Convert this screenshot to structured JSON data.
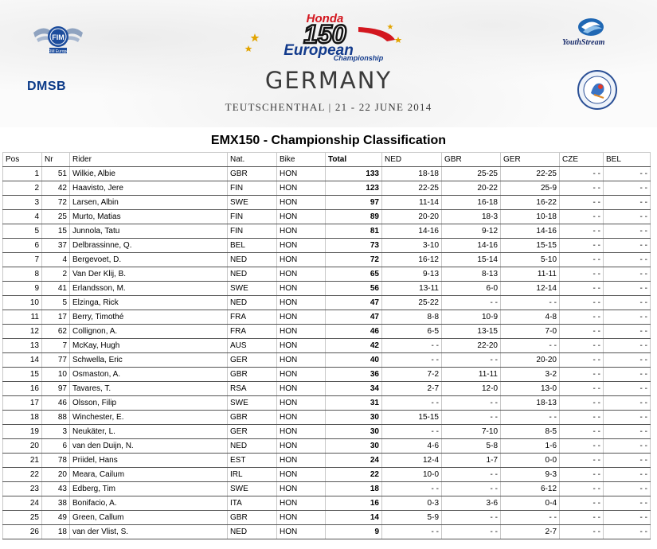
{
  "header": {
    "logo_left_top": "FIM Europe",
    "logo_left_bottom": "DMSB",
    "series_logo_brand": "Honda",
    "series_logo_number": "150",
    "series_logo_word1": "European",
    "series_logo_word2": "Championship",
    "logo_right_top": "YouthStream",
    "country": "GERMANY",
    "venue": "TEUTSCHENTHAL | 21 - 22 JUNE 2014"
  },
  "title": "EMX150 - Championship Classification",
  "table": {
    "columns": [
      "Pos",
      "Nr",
      "Rider",
      "Nat.",
      "Bike",
      "Total",
      "NED",
      "GBR",
      "GER",
      "CZE",
      "BEL"
    ],
    "rows": [
      {
        "pos": "1",
        "nr": "51",
        "rider": "Wilkie, Albie",
        "nat": "GBR",
        "bike": "HON",
        "total": "133",
        "ned": "18-18",
        "gbr": "25-25",
        "ger": "22-25",
        "cze": "- -",
        "bel": "- -"
      },
      {
        "pos": "2",
        "nr": "42",
        "rider": "Haavisto, Jere",
        "nat": "FIN",
        "bike": "HON",
        "total": "123",
        "ned": "22-25",
        "gbr": "20-22",
        "ger": "25-9",
        "cze": "- -",
        "bel": "- -"
      },
      {
        "pos": "3",
        "nr": "72",
        "rider": "Larsen, Albin",
        "nat": "SWE",
        "bike": "HON",
        "total": "97",
        "ned": "11-14",
        "gbr": "16-18",
        "ger": "16-22",
        "cze": "- -",
        "bel": "- -"
      },
      {
        "pos": "4",
        "nr": "25",
        "rider": "Murto, Matias",
        "nat": "FIN",
        "bike": "HON",
        "total": "89",
        "ned": "20-20",
        "gbr": "18-3",
        "ger": "10-18",
        "cze": "- -",
        "bel": "- -"
      },
      {
        "pos": "5",
        "nr": "15",
        "rider": "Junnola, Tatu",
        "nat": "FIN",
        "bike": "HON",
        "total": "81",
        "ned": "14-16",
        "gbr": "9-12",
        "ger": "14-16",
        "cze": "- -",
        "bel": "- -"
      },
      {
        "pos": "6",
        "nr": "37",
        "rider": "Delbrassinne, Q.",
        "nat": "BEL",
        "bike": "HON",
        "total": "73",
        "ned": "3-10",
        "gbr": "14-16",
        "ger": "15-15",
        "cze": "- -",
        "bel": "- -"
      },
      {
        "pos": "7",
        "nr": "4",
        "rider": "Bergevoet, D.",
        "nat": "NED",
        "bike": "HON",
        "total": "72",
        "ned": "16-12",
        "gbr": "15-14",
        "ger": "5-10",
        "cze": "- -",
        "bel": "- -"
      },
      {
        "pos": "8",
        "nr": "2",
        "rider": "Van Der Klij, B.",
        "nat": "NED",
        "bike": "HON",
        "total": "65",
        "ned": "9-13",
        "gbr": "8-13",
        "ger": "11-11",
        "cze": "- -",
        "bel": "- -"
      },
      {
        "pos": "9",
        "nr": "41",
        "rider": "Erlandsson, M.",
        "nat": "SWE",
        "bike": "HON",
        "total": "56",
        "ned": "13-11",
        "gbr": "6-0",
        "ger": "12-14",
        "cze": "- -",
        "bel": "- -"
      },
      {
        "pos": "10",
        "nr": "5",
        "rider": "Elzinga, Rick",
        "nat": "NED",
        "bike": "HON",
        "total": "47",
        "ned": "25-22",
        "gbr": "- -",
        "ger": "- -",
        "cze": "- -",
        "bel": "- -"
      },
      {
        "pos": "11",
        "nr": "17",
        "rider": "Berry, Timothé",
        "nat": "FRA",
        "bike": "HON",
        "total": "47",
        "ned": "8-8",
        "gbr": "10-9",
        "ger": "4-8",
        "cze": "- -",
        "bel": "- -"
      },
      {
        "pos": "12",
        "nr": "62",
        "rider": "Collignon, A.",
        "nat": "FRA",
        "bike": "HON",
        "total": "46",
        "ned": "6-5",
        "gbr": "13-15",
        "ger": "7-0",
        "cze": "- -",
        "bel": "- -"
      },
      {
        "pos": "13",
        "nr": "7",
        "rider": "McKay, Hugh",
        "nat": "AUS",
        "bike": "HON",
        "total": "42",
        "ned": "- -",
        "gbr": "22-20",
        "ger": "- -",
        "cze": "- -",
        "bel": "- -"
      },
      {
        "pos": "14",
        "nr": "77",
        "rider": "Schwella, Eric",
        "nat": "GER",
        "bike": "HON",
        "total": "40",
        "ned": "- -",
        "gbr": "- -",
        "ger": "20-20",
        "cze": "- -",
        "bel": "- -"
      },
      {
        "pos": "15",
        "nr": "10",
        "rider": "Osmaston, A.",
        "nat": "GBR",
        "bike": "HON",
        "total": "36",
        "ned": "7-2",
        "gbr": "11-11",
        "ger": "3-2",
        "cze": "- -",
        "bel": "- -"
      },
      {
        "pos": "16",
        "nr": "97",
        "rider": "Tavares, T.",
        "nat": "RSA",
        "bike": "HON",
        "total": "34",
        "ned": "2-7",
        "gbr": "12-0",
        "ger": "13-0",
        "cze": "- -",
        "bel": "- -"
      },
      {
        "pos": "17",
        "nr": "46",
        "rider": "Olsson, Filip",
        "nat": "SWE",
        "bike": "HON",
        "total": "31",
        "ned": "- -",
        "gbr": "- -",
        "ger": "18-13",
        "cze": "- -",
        "bel": "- -"
      },
      {
        "pos": "18",
        "nr": "88",
        "rider": "Winchester, E.",
        "nat": "GBR",
        "bike": "HON",
        "total": "30",
        "ned": "15-15",
        "gbr": "- -",
        "ger": "- -",
        "cze": "- -",
        "bel": "- -"
      },
      {
        "pos": "19",
        "nr": "3",
        "rider": "Neukäter, L.",
        "nat": "GER",
        "bike": "HON",
        "total": "30",
        "ned": "- -",
        "gbr": "7-10",
        "ger": "8-5",
        "cze": "- -",
        "bel": "- -"
      },
      {
        "pos": "20",
        "nr": "6",
        "rider": "van den Duijn, N.",
        "nat": "NED",
        "bike": "HON",
        "total": "30",
        "ned": "4-6",
        "gbr": "5-8",
        "ger": "1-6",
        "cze": "- -",
        "bel": "- -"
      },
      {
        "pos": "21",
        "nr": "78",
        "rider": "Priidel, Hans",
        "nat": "EST",
        "bike": "HON",
        "total": "24",
        "ned": "12-4",
        "gbr": "1-7",
        "ger": "0-0",
        "cze": "- -",
        "bel": "- -"
      },
      {
        "pos": "22",
        "nr": "20",
        "rider": "Meara, Cailum",
        "nat": "IRL",
        "bike": "HON",
        "total": "22",
        "ned": "10-0",
        "gbr": "- -",
        "ger": "9-3",
        "cze": "- -",
        "bel": "- -"
      },
      {
        "pos": "23",
        "nr": "43",
        "rider": "Edberg, Tim",
        "nat": "SWE",
        "bike": "HON",
        "total": "18",
        "ned": "- -",
        "gbr": "- -",
        "ger": "6-12",
        "cze": "- -",
        "bel": "- -"
      },
      {
        "pos": "24",
        "nr": "38",
        "rider": "Bonifacio, A.",
        "nat": "ITA",
        "bike": "HON",
        "total": "16",
        "ned": "0-3",
        "gbr": "3-6",
        "ger": "0-4",
        "cze": "- -",
        "bel": "- -"
      },
      {
        "pos": "25",
        "nr": "49",
        "rider": "Green, Callum",
        "nat": "GBR",
        "bike": "HON",
        "total": "14",
        "ned": "5-9",
        "gbr": "- -",
        "ger": "- -",
        "cze": "- -",
        "bel": "- -"
      },
      {
        "pos": "26",
        "nr": "18",
        "rider": "van der Vlist, S.",
        "nat": "NED",
        "bike": "HON",
        "total": "9",
        "ned": "- -",
        "gbr": "- -",
        "ger": "2-7",
        "cze": "- -",
        "bel": "- -"
      }
    ]
  },
  "colors": {
    "honda_red": "#d3171f",
    "series_blue": "#133b8c",
    "dmsb_blue": "#0b3a88",
    "header_text": "#3a3a3a"
  }
}
